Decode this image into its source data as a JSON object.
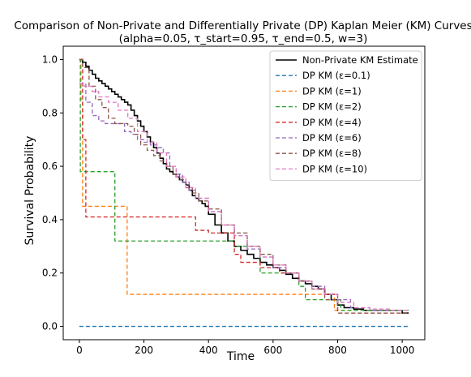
{
  "chart_data": {
    "type": "line",
    "title_line1": "Comparison of Non-Private and Differentially Private (DP) Kaplan Meier (KM) Curves",
    "title_line2": "(alpha=0.05, τ_start=0.95, τ_end=0.5, w=3)",
    "xlabel": "Time",
    "ylabel": "Survival Probability",
    "xlim": [
      -50,
      1070
    ],
    "ylim": [
      -0.05,
      1.05
    ],
    "xticks": [
      0,
      200,
      400,
      600,
      800,
      1000
    ],
    "yticks": [
      0.0,
      0.2,
      0.4,
      0.6,
      0.8,
      1.0
    ],
    "grid": false,
    "legend_position": "top-right",
    "series": [
      {
        "name": "Non-Private KM Estimate",
        "color": "#000000",
        "dash": "solid",
        "step": true,
        "x": [
          0,
          10,
          20,
          30,
          40,
          50,
          60,
          70,
          80,
          90,
          100,
          110,
          120,
          130,
          140,
          150,
          160,
          170,
          180,
          190,
          200,
          210,
          220,
          230,
          240,
          250,
          260,
          270,
          280,
          290,
          300,
          310,
          320,
          330,
          340,
          350,
          360,
          370,
          380,
          390,
          400,
          420,
          440,
          460,
          480,
          500,
          520,
          540,
          560,
          580,
          600,
          620,
          640,
          660,
          680,
          700,
          720,
          740,
          760,
          780,
          800,
          820,
          850,
          880,
          920,
          960,
          1000,
          1020
        ],
        "y": [
          1.0,
          0.99,
          0.975,
          0.96,
          0.945,
          0.93,
          0.92,
          0.91,
          0.9,
          0.89,
          0.88,
          0.87,
          0.86,
          0.85,
          0.84,
          0.83,
          0.81,
          0.79,
          0.77,
          0.75,
          0.73,
          0.71,
          0.69,
          0.67,
          0.65,
          0.63,
          0.61,
          0.59,
          0.58,
          0.57,
          0.56,
          0.55,
          0.54,
          0.53,
          0.51,
          0.49,
          0.48,
          0.47,
          0.46,
          0.45,
          0.42,
          0.38,
          0.35,
          0.32,
          0.3,
          0.285,
          0.27,
          0.255,
          0.24,
          0.23,
          0.22,
          0.21,
          0.195,
          0.18,
          0.17,
          0.16,
          0.15,
          0.14,
          0.12,
          0.1,
          0.08,
          0.07,
          0.065,
          0.06,
          0.06,
          0.06,
          0.05,
          0.05
        ]
      },
      {
        "name": "DP KM (ε=0.1)",
        "color": "#1f77b4",
        "dash": "dashed",
        "step": true,
        "x": [
          0,
          1020
        ],
        "y": [
          0.0,
          0.0
        ]
      },
      {
        "name": "DP KM (ε=1)",
        "color": "#ff7f0e",
        "dash": "dashed",
        "step": true,
        "x": [
          0,
          5,
          10,
          148,
          790,
          1020
        ],
        "y": [
          1.0,
          0.85,
          0.45,
          0.12,
          0.06,
          0.06
        ]
      },
      {
        "name": "DP KM (ε=2)",
        "color": "#2ca02c",
        "dash": "dashed",
        "step": true,
        "x": [
          0,
          3,
          110,
          480,
          560,
          680,
          700,
          810,
          1020
        ],
        "y": [
          1.0,
          0.58,
          0.32,
          0.3,
          0.2,
          0.15,
          0.1,
          0.06,
          0.06
        ]
      },
      {
        "name": "DP KM (ε=4)",
        "color": "#d62728",
        "dash": "dashed",
        "step": true,
        "x": [
          0,
          10,
          20,
          360,
          400,
          480,
          500,
          560,
          620,
          680,
          720,
          760,
          800,
          1020
        ],
        "y": [
          1.0,
          0.7,
          0.41,
          0.36,
          0.35,
          0.27,
          0.24,
          0.22,
          0.2,
          0.17,
          0.14,
          0.12,
          0.05,
          0.05
        ]
      },
      {
        "name": "DP KM (ε=6)",
        "color": "#9467bd",
        "dash": "dashed",
        "step": true,
        "x": [
          0,
          20,
          40,
          60,
          80,
          110,
          140,
          160,
          180,
          200,
          220,
          240,
          260,
          280,
          300,
          320,
          340,
          360,
          400,
          440,
          480,
          520,
          560,
          600,
          640,
          680,
          720,
          760,
          800,
          840,
          900,
          1020
        ],
        "y": [
          0.91,
          0.84,
          0.79,
          0.77,
          0.76,
          0.76,
          0.73,
          0.72,
          0.7,
          0.69,
          0.68,
          0.67,
          0.65,
          0.6,
          0.57,
          0.54,
          0.51,
          0.48,
          0.43,
          0.38,
          0.34,
          0.29,
          0.26,
          0.22,
          0.2,
          0.17,
          0.15,
          0.12,
          0.1,
          0.07,
          0.06,
          0.06
        ]
      },
      {
        "name": "DP KM (ε=8)",
        "color": "#8c564b",
        "dash": "dashed",
        "step": true,
        "x": [
          0,
          10,
          30,
          50,
          70,
          90,
          110,
          150,
          170,
          190,
          210,
          230,
          250,
          270,
          290,
          310,
          330,
          350,
          370,
          400,
          440,
          480,
          520,
          560,
          600,
          640,
          680,
          720,
          760,
          800,
          1020
        ],
        "y": [
          1.0,
          0.97,
          0.9,
          0.85,
          0.82,
          0.78,
          0.76,
          0.75,
          0.72,
          0.68,
          0.66,
          0.64,
          0.62,
          0.6,
          0.57,
          0.55,
          0.52,
          0.5,
          0.47,
          0.44,
          0.38,
          0.35,
          0.3,
          0.27,
          0.23,
          0.2,
          0.17,
          0.14,
          0.1,
          0.05,
          0.05
        ]
      },
      {
        "name": "DP KM (ε=10)",
        "color": "#e377c2",
        "dash": "dashed",
        "step": true,
        "x": [
          0,
          15,
          40,
          60,
          90,
          120,
          150,
          180,
          210,
          240,
          270,
          300,
          330,
          360,
          400,
          440,
          480,
          520,
          560,
          600,
          640,
          680,
          720,
          760,
          800,
          850,
          900,
          960,
          1020
        ],
        "y": [
          0.91,
          0.9,
          0.88,
          0.86,
          0.84,
          0.81,
          0.78,
          0.73,
          0.69,
          0.65,
          0.6,
          0.56,
          0.52,
          0.48,
          0.43,
          0.38,
          0.34,
          0.3,
          0.26,
          0.23,
          0.2,
          0.17,
          0.14,
          0.12,
          0.09,
          0.07,
          0.065,
          0.06,
          0.06
        ]
      }
    ]
  }
}
